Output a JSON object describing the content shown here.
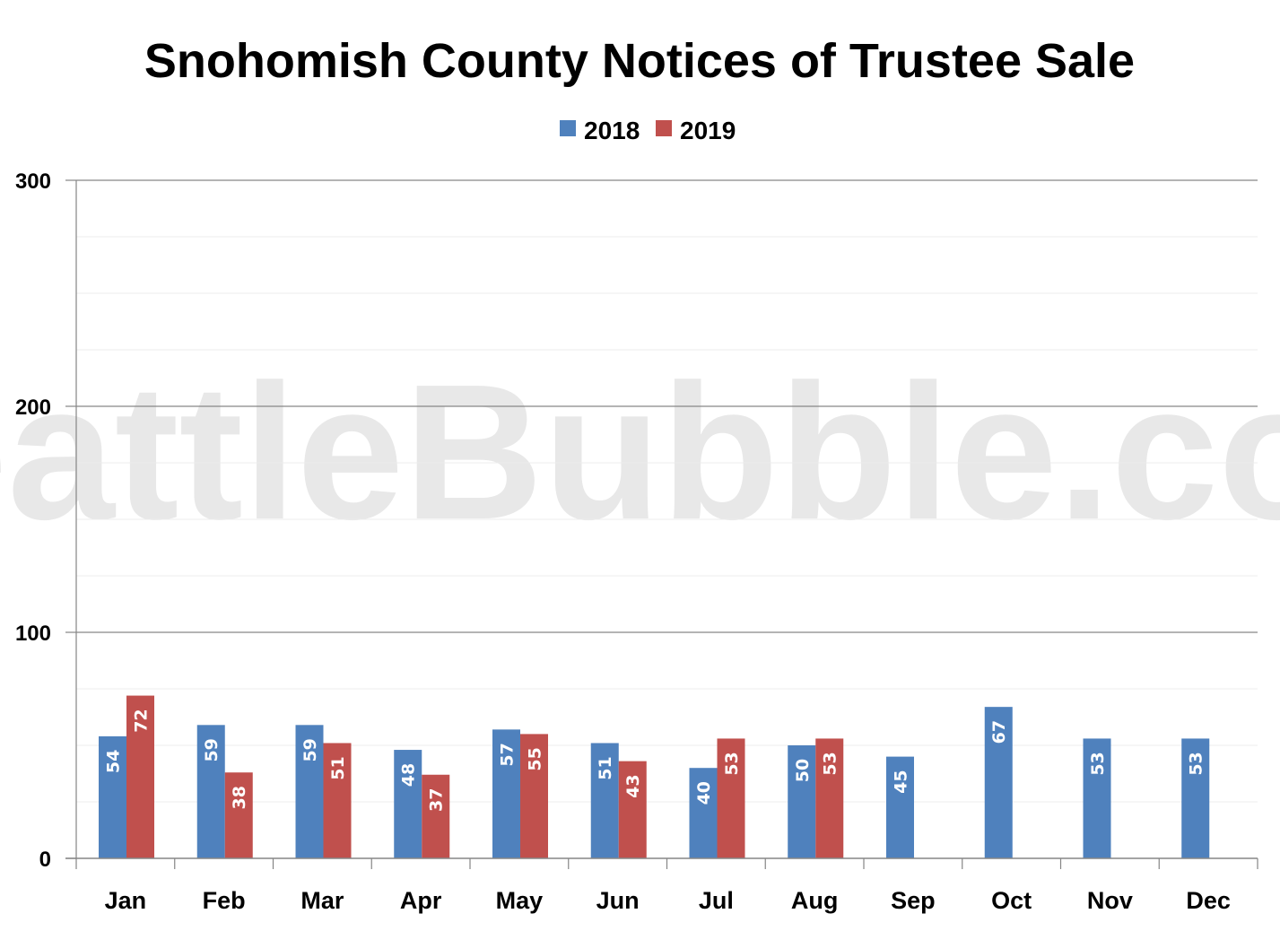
{
  "watermark": "SeattleBubble.com",
  "chart_data": {
    "type": "bar",
    "title": "Snohomish County Notices of Trustee Sale",
    "xlabel": "",
    "ylabel": "",
    "ylim": [
      0,
      300
    ],
    "y_ticks": [
      0,
      100,
      200,
      300
    ],
    "minor_gridlines_every": 25,
    "grid": true,
    "legend_position": "top-center",
    "categories": [
      "Jan",
      "Feb",
      "Mar",
      "Apr",
      "May",
      "Jun",
      "Jul",
      "Aug",
      "Sep",
      "Oct",
      "Nov",
      "Dec"
    ],
    "series": [
      {
        "name": "2018",
        "color": "#4f81bd",
        "values": [
          54,
          59,
          59,
          48,
          57,
          51,
          40,
          50,
          45,
          67,
          53,
          53
        ]
      },
      {
        "name": "2019",
        "color": "#c0504d",
        "values": [
          72,
          38,
          51,
          37,
          55,
          43,
          53,
          53,
          null,
          null,
          null,
          null
        ]
      }
    ]
  }
}
